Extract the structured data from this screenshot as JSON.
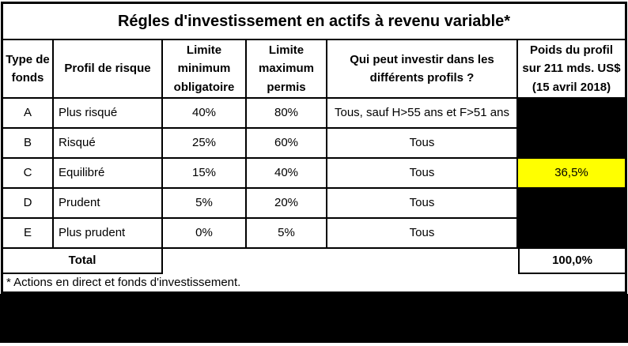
{
  "title": "Régles d'investissement en actifs à revenu variable*",
  "table": {
    "headers": [
      "Type de fonds",
      "Profil de risque",
      "Limite minimum obligatoire",
      "Limite maximum permis",
      "Qui peut investir dans les différents profils ?",
      "Poids du profil sur 211 mds. US$ (15 avril 2018)"
    ],
    "rows": [
      {
        "type": "A",
        "profil": "Plus risqué",
        "min": "40%",
        "max": "80%",
        "qui": "Tous, sauf H>55 ans et F>51 ans",
        "poids": "",
        "poids_style": "redacted"
      },
      {
        "type": "B",
        "profil": "Risqué",
        "min": "25%",
        "max": "60%",
        "qui": "Tous",
        "poids": "",
        "poids_style": "redacted"
      },
      {
        "type": "C",
        "profil": "Equilibré",
        "min": "15%",
        "max": "40%",
        "qui": "Tous",
        "poids": "36,5%",
        "poids_style": "highlight"
      },
      {
        "type": "D",
        "profil": "Prudent",
        "min": "5%",
        "max": "20%",
        "qui": "Tous",
        "poids": "",
        "poids_style": "redacted"
      },
      {
        "type": "E",
        "profil": "Plus prudent",
        "min": "0%",
        "max": "5%",
        "qui": "Tous",
        "poids": "",
        "poids_style": "redacted"
      }
    ],
    "total": {
      "label": "Total",
      "value": "100,0%"
    }
  },
  "footnote": "* Actions en direct et fonds d'investissement.",
  "colors": {
    "highlight": "#FFFF00",
    "redacted": "#000000",
    "border": "#000000",
    "background": "#FFFFFF"
  }
}
